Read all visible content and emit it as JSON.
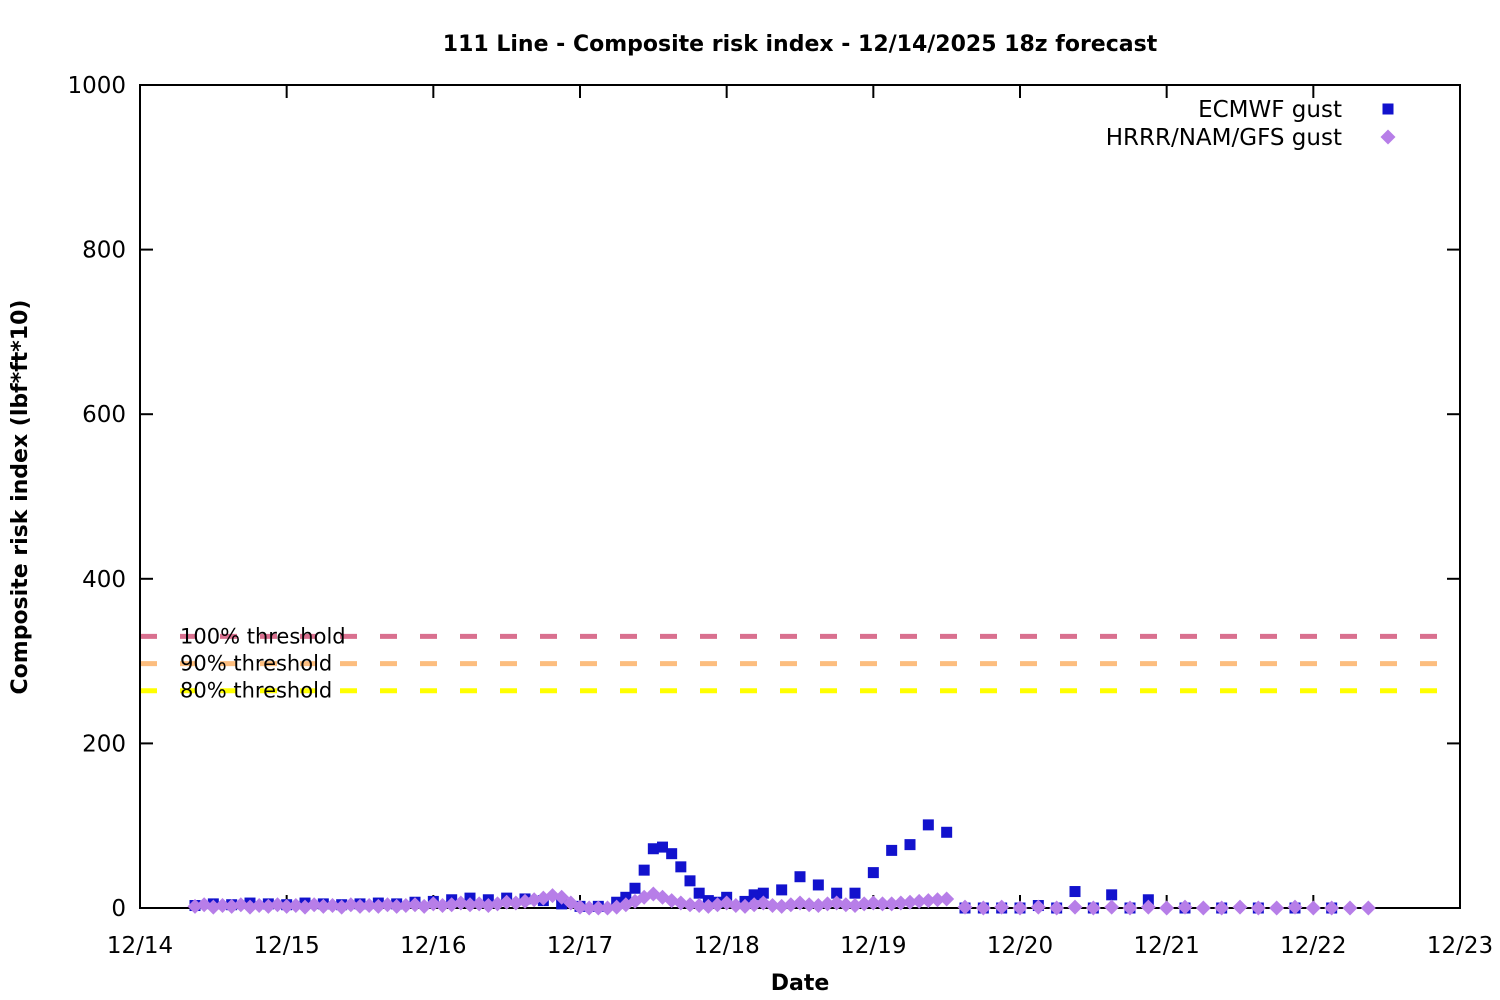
{
  "chart_data": {
    "type": "scatter",
    "title": "111 Line - Composite risk index - 12/14/2025 18z forecast",
    "xlabel": "Date",
    "ylabel": "Composite risk index (lbf*ft*10)",
    "x_tick_labels": [
      "12/14",
      "12/15",
      "12/16",
      "12/17",
      "12/18",
      "12/19",
      "12/20",
      "12/21",
      "12/22",
      "12/23"
    ],
    "x_tick_days": [
      0,
      1,
      2,
      3,
      4,
      5,
      6,
      7,
      8,
      9
    ],
    "y_ticks": [
      0,
      200,
      400,
      600,
      800,
      1000
    ],
    "xlim_days": [
      0,
      9
    ],
    "ylim": [
      0,
      1000
    ],
    "time_unit": "days since 12/14 00:00",
    "grid": false,
    "legend_position": "top-right",
    "axis_color": "#000000",
    "thresholds": [
      {
        "label": "100% threshold",
        "value": 330,
        "color": "#d9708f"
      },
      {
        "label": "90% threshold",
        "value": 297,
        "color": "#fcbd7e"
      },
      {
        "label": "80% threshold",
        "value": 264,
        "color": "#ffff00"
      }
    ],
    "series": [
      {
        "name": "ECMWF gust",
        "marker": "square",
        "color": "#1212cd",
        "points": [
          [
            0.375,
            3
          ],
          [
            0.5,
            5
          ],
          [
            0.625,
            4
          ],
          [
            0.75,
            6
          ],
          [
            0.875,
            5
          ],
          [
            1.0,
            4
          ],
          [
            1.125,
            6
          ],
          [
            1.25,
            5
          ],
          [
            1.375,
            4
          ],
          [
            1.5,
            5
          ],
          [
            1.625,
            6
          ],
          [
            1.75,
            5
          ],
          [
            1.875,
            7
          ],
          [
            2.0,
            8
          ],
          [
            2.125,
            10
          ],
          [
            2.25,
            12
          ],
          [
            2.375,
            10
          ],
          [
            2.5,
            12
          ],
          [
            2.625,
            11
          ],
          [
            2.75,
            9
          ],
          [
            2.875,
            5
          ],
          [
            3.0,
            2
          ],
          [
            3.125,
            2
          ],
          [
            3.25,
            7
          ],
          [
            3.3125,
            13
          ],
          [
            3.375,
            24
          ],
          [
            3.4375,
            46
          ],
          [
            3.5,
            72
          ],
          [
            3.5625,
            74
          ],
          [
            3.625,
            66
          ],
          [
            3.6875,
            50
          ],
          [
            3.75,
            33
          ],
          [
            3.8125,
            18
          ],
          [
            3.875,
            9
          ],
          [
            3.9375,
            7
          ],
          [
            4.0,
            13
          ],
          [
            4.125,
            8
          ],
          [
            4.1875,
            16
          ],
          [
            4.25,
            18
          ],
          [
            4.375,
            22
          ],
          [
            4.5,
            38
          ],
          [
            4.625,
            28
          ],
          [
            4.75,
            18
          ],
          [
            4.875,
            18
          ],
          [
            5.0,
            43
          ],
          [
            5.125,
            70
          ],
          [
            5.25,
            77
          ],
          [
            5.375,
            101
          ],
          [
            5.5,
            92
          ],
          [
            5.625,
            0
          ],
          [
            5.75,
            0
          ],
          [
            5.875,
            0
          ],
          [
            6.0,
            0
          ],
          [
            6.125,
            3
          ],
          [
            6.25,
            0
          ],
          [
            6.375,
            20
          ],
          [
            6.5,
            0
          ],
          [
            6.625,
            16
          ],
          [
            6.75,
            0
          ],
          [
            6.875,
            10
          ],
          [
            7.125,
            0
          ],
          [
            7.375,
            0
          ],
          [
            7.625,
            0
          ],
          [
            7.875,
            0
          ],
          [
            8.125,
            0
          ]
        ]
      },
      {
        "name": "HRRR/NAM/GFS gust",
        "marker": "diamond",
        "color": "#b77ee8",
        "points": [
          [
            0.375,
            2
          ],
          [
            0.4375,
            4
          ],
          [
            0.5,
            1
          ],
          [
            0.5625,
            3
          ],
          [
            0.625,
            2
          ],
          [
            0.6875,
            4
          ],
          [
            0.75,
            1
          ],
          [
            0.8125,
            3
          ],
          [
            0.875,
            2
          ],
          [
            0.9375,
            4
          ],
          [
            1.0,
            2
          ],
          [
            1.0625,
            3
          ],
          [
            1.125,
            1
          ],
          [
            1.1875,
            4
          ],
          [
            1.25,
            2
          ],
          [
            1.3125,
            3
          ],
          [
            1.375,
            1
          ],
          [
            1.4375,
            4
          ],
          [
            1.5,
            2
          ],
          [
            1.5625,
            3
          ],
          [
            1.625,
            2
          ],
          [
            1.6875,
            4
          ],
          [
            1.75,
            2
          ],
          [
            1.8125,
            3
          ],
          [
            1.875,
            4
          ],
          [
            1.9375,
            2
          ],
          [
            2.0,
            5
          ],
          [
            2.0625,
            3
          ],
          [
            2.125,
            4
          ],
          [
            2.1875,
            6
          ],
          [
            2.25,
            4
          ],
          [
            2.3125,
            5
          ],
          [
            2.375,
            3
          ],
          [
            2.4375,
            5
          ],
          [
            2.5,
            7
          ],
          [
            2.5625,
            6
          ],
          [
            2.625,
            8
          ],
          [
            2.6875,
            10
          ],
          [
            2.75,
            12
          ],
          [
            2.8125,
            15
          ],
          [
            2.875,
            13
          ],
          [
            2.9375,
            6
          ],
          [
            3.0,
            1
          ],
          [
            3.0625,
            0
          ],
          [
            3.125,
            0
          ],
          [
            3.1875,
            0
          ],
          [
            3.25,
            1
          ],
          [
            3.3125,
            4
          ],
          [
            3.375,
            8
          ],
          [
            3.4375,
            13
          ],
          [
            3.5,
            17
          ],
          [
            3.5625,
            13
          ],
          [
            3.625,
            9
          ],
          [
            3.6875,
            6
          ],
          [
            3.75,
            4
          ],
          [
            3.8125,
            3
          ],
          [
            3.875,
            2
          ],
          [
            3.9375,
            4
          ],
          [
            4.0,
            6
          ],
          [
            4.0625,
            3
          ],
          [
            4.125,
            2
          ],
          [
            4.1875,
            4
          ],
          [
            4.25,
            6
          ],
          [
            4.3125,
            3
          ],
          [
            4.375,
            2
          ],
          [
            4.4375,
            4
          ],
          [
            4.5,
            6
          ],
          [
            4.5625,
            4
          ],
          [
            4.625,
            3
          ],
          [
            4.6875,
            5
          ],
          [
            4.75,
            6
          ],
          [
            4.8125,
            4
          ],
          [
            4.875,
            3
          ],
          [
            4.9375,
            5
          ],
          [
            5.0,
            6
          ],
          [
            5.0625,
            5
          ],
          [
            5.125,
            5
          ],
          [
            5.1875,
            6
          ],
          [
            5.25,
            7
          ],
          [
            5.3125,
            8
          ],
          [
            5.375,
            9
          ],
          [
            5.4375,
            10
          ],
          [
            5.5,
            11
          ],
          [
            5.625,
            1
          ],
          [
            5.75,
            0
          ],
          [
            5.875,
            1
          ],
          [
            6.0,
            0
          ],
          [
            6.125,
            1
          ],
          [
            6.25,
            0
          ],
          [
            6.375,
            1
          ],
          [
            6.5,
            0
          ],
          [
            6.625,
            1
          ],
          [
            6.75,
            0
          ],
          [
            6.875,
            1
          ],
          [
            7.0,
            0
          ],
          [
            7.125,
            1
          ],
          [
            7.25,
            0
          ],
          [
            7.375,
            0
          ],
          [
            7.5,
            1
          ],
          [
            7.625,
            0
          ],
          [
            7.75,
            0
          ],
          [
            7.875,
            1
          ],
          [
            8.0,
            0
          ],
          [
            8.125,
            0
          ],
          [
            8.25,
            0
          ],
          [
            8.375,
            0
          ]
        ]
      }
    ]
  }
}
